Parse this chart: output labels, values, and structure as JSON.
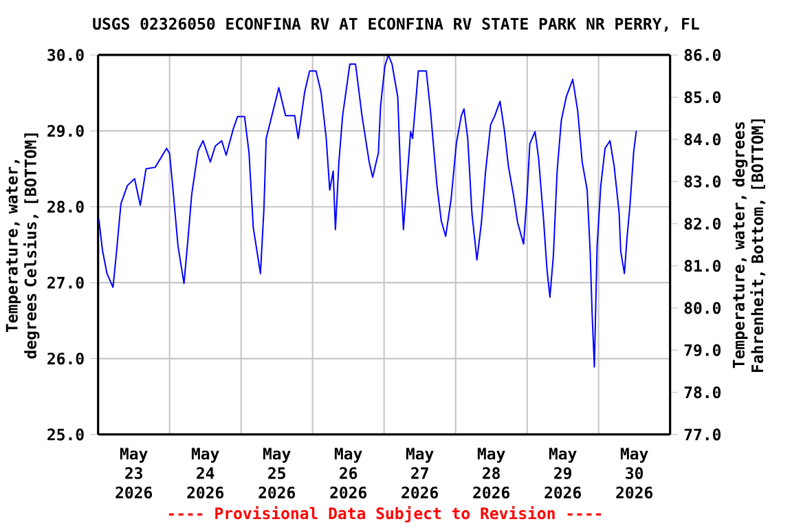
{
  "chart_data": {
    "type": "line",
    "title": "USGS 02326050 ECONFINA RV AT ECONFINA RV STATE PARK NR PERRY, FL",
    "ylabel": "Temperature, water, degrees Celsius, [BOTTOM]",
    "y2label": "Temperature, water, degrees Fahrenheit, Bottom, [BOTTOM]",
    "annotations": [
      "---- Provisional Data Subject to Revision ----"
    ],
    "color": "#0000ff",
    "grid": true,
    "xlim": [
      "2026-05-23T00:00",
      "2026-05-31T00:00"
    ],
    "xticks": [
      {
        "value": "2026-05-23T12:00",
        "label": "May 23 2026"
      },
      {
        "value": "2026-05-24T12:00",
        "label": "May 24 2026"
      },
      {
        "value": "2026-05-25T12:00",
        "label": "May 25 2026"
      },
      {
        "value": "2026-05-26T12:00",
        "label": "May 26 2026"
      },
      {
        "value": "2026-05-27T12:00",
        "label": "May 27 2026"
      },
      {
        "value": "2026-05-28T12:00",
        "label": "May 28 2026"
      },
      {
        "value": "2026-05-29T12:00",
        "label": "May 29 2026"
      },
      {
        "value": "2026-05-30T12:00",
        "label": "May 30 2026"
      },
      {
        "value": "2026-05-24T00:00",
        "label": null
      },
      {
        "value": "2026-05-25T00:00",
        "label": null
      },
      {
        "value": "2026-05-26T00:00",
        "label": null
      },
      {
        "value": "2026-05-27T00:00",
        "label": null
      },
      {
        "value": "2026-05-28T00:00",
        "label": null
      },
      {
        "value": "2026-05-29T00:00",
        "label": null
      },
      {
        "value": "2026-05-30T00:00",
        "label": null
      }
    ],
    "ylim": [
      25,
      30
    ],
    "yticks": [
      {
        "value": 25,
        "label": "25.0"
      },
      {
        "value": 26,
        "label": "26.0"
      },
      {
        "value": 27,
        "label": "27.0"
      },
      {
        "value": 28,
        "label": "28.0"
      },
      {
        "value": 29,
        "label": "29.0"
      },
      {
        "value": 30,
        "label": "30.0"
      }
    ],
    "y2lim": [
      77,
      86
    ],
    "y2ticks": [
      {
        "value": 77,
        "label": "77.0"
      },
      {
        "value": 78,
        "label": "78.0"
      },
      {
        "value": 79,
        "label": "79.0"
      },
      {
        "value": 80,
        "label": "80.0"
      },
      {
        "value": 81,
        "label": "81.0"
      },
      {
        "value": 82,
        "label": "82.0"
      },
      {
        "value": 83,
        "label": "83.0"
      },
      {
        "value": 84,
        "label": "84.0"
      },
      {
        "value": 85,
        "label": "85.0"
      },
      {
        "value": 86,
        "label": "86.0"
      }
    ],
    "x": [
      "2026-05-23T00:15",
      "2026-05-23T01:30",
      "2026-05-23T03:00",
      "2026-05-23T05:00",
      "2026-05-23T06:00",
      "2026-05-23T07:40",
      "2026-05-23T09:50",
      "2026-05-23T12:15",
      "2026-05-23T14:10",
      "2026-05-23T16:05",
      "2026-05-23T19:10",
      "2026-05-23T23:00",
      "2026-05-24T00:00",
      "2026-05-24T01:10",
      "2026-05-24T02:50",
      "2026-05-24T04:50",
      "2026-05-24T06:15",
      "2026-05-24T07:25",
      "2026-05-24T09:35",
      "2026-05-24T11:15",
      "2026-05-24T13:40",
      "2026-05-24T15:20",
      "2026-05-24T17:30",
      "2026-05-24T19:00",
      "2026-05-24T21:20",
      "2026-05-24T22:50",
      "2026-05-25T01:10",
      "2026-05-25T02:40",
      "2026-05-25T04:05",
      "2026-05-25T06:30",
      "2026-05-25T07:40",
      "2026-05-25T08:25",
      "2026-05-25T10:20",
      "2026-05-25T12:40",
      "2026-05-25T14:55",
      "2026-05-25T18:00",
      "2026-05-25T19:10",
      "2026-05-25T21:20",
      "2026-05-25T23:00",
      "2026-05-26T01:10",
      "2026-05-26T02:50",
      "2026-05-26T04:35",
      "2026-05-26T05:45",
      "2026-05-26T06:55",
      "2026-05-26T07:40",
      "2026-05-26T08:50",
      "2026-05-26T10:05",
      "2026-05-26T12:30",
      "2026-05-26T14:25",
      "2026-05-26T16:35",
      "2026-05-26T19:00",
      "2026-05-26T20:10",
      "2026-05-26T22:05",
      "2026-05-26T22:50",
      "2026-05-27T00:15",
      "2026-05-27T01:25",
      "2026-05-27T02:40",
      "2026-05-27T04:35",
      "2026-05-27T05:30",
      "2026-05-27T06:30",
      "2026-05-27T07:40",
      "2026-05-27T08:55",
      "2026-05-27T09:35",
      "2026-05-27T11:30",
      "2026-05-27T14:10",
      "2026-05-27T15:35",
      "2026-05-27T17:45",
      "2026-05-27T19:10",
      "2026-05-27T20:40",
      "2026-05-27T22:30",
      "2026-05-28T00:15",
      "2026-05-28T01:55",
      "2026-05-28T02:50",
      "2026-05-28T04:05",
      "2026-05-28T05:30",
      "2026-05-28T07:10",
      "2026-05-28T08:40",
      "2026-05-28T10:05",
      "2026-05-28T11:45",
      "2026-05-28T13:10",
      "2026-05-28T14:55",
      "2026-05-28T16:20",
      "2026-05-28T17:45",
      "2026-05-28T19:25",
      "2026-05-28T20:50",
      "2026-05-28T22:50",
      "2026-05-29T00:00",
      "2026-05-29T00:55",
      "2026-05-29T02:40",
      "2026-05-29T03:50",
      "2026-05-29T05:30",
      "2026-05-29T06:40",
      "2026-05-29T07:40",
      "2026-05-29T08:50",
      "2026-05-29T10:05",
      "2026-05-29T11:30",
      "2026-05-29T13:10",
      "2026-05-29T15:20",
      "2026-05-29T17:00",
      "2026-05-29T18:30",
      "2026-05-29T20:10",
      "2026-05-29T21:10",
      "2026-05-29T21:50",
      "2026-05-29T22:35",
      "2026-05-29T23:30",
      "2026-05-30T00:45",
      "2026-05-30T02:10",
      "2026-05-30T03:50",
      "2026-05-30T05:15",
      "2026-05-30T06:55",
      "2026-05-30T07:25",
      "2026-05-30T08:40",
      "2026-05-30T09:35",
      "2026-05-30T10:35",
      "2026-05-30T11:45",
      "2026-05-30T12:40"
    ],
    "values": [
      27.84,
      27.42,
      27.12,
      26.94,
      27.33,
      28.04,
      28.28,
      28.37,
      28.02,
      28.5,
      28.52,
      28.77,
      28.7,
      28.22,
      27.48,
      26.99,
      27.61,
      28.16,
      28.74,
      28.87,
      28.59,
      28.8,
      28.87,
      28.68,
      29.02,
      29.19,
      29.19,
      28.71,
      27.73,
      27.12,
      27.97,
      28.9,
      29.2,
      29.57,
      29.2,
      29.2,
      28.9,
      29.51,
      29.79,
      29.79,
      29.51,
      28.9,
      28.22,
      28.47,
      27.7,
      28.59,
      29.2,
      29.88,
      29.88,
      29.2,
      28.59,
      28.39,
      28.71,
      29.33,
      29.85,
      30.0,
      29.88,
      29.45,
      28.47,
      27.7,
      28.34,
      28.99,
      28.9,
      29.79,
      29.79,
      29.26,
      28.28,
      27.82,
      27.61,
      28.1,
      28.83,
      29.2,
      29.29,
      28.9,
      27.91,
      27.3,
      27.79,
      28.47,
      29.08,
      29.2,
      29.39,
      29.02,
      28.53,
      28.16,
      27.79,
      27.51,
      28.16,
      28.83,
      28.99,
      28.65,
      27.85,
      27.18,
      26.81,
      27.36,
      28.47,
      29.14,
      29.45,
      29.68,
      29.26,
      28.59,
      28.22,
      27.42,
      26.59,
      25.89,
      27.48,
      28.28,
      28.77,
      28.87,
      28.53,
      27.91,
      27.42,
      27.12,
      27.61,
      28.04,
      28.71,
      29.0
    ]
  }
}
